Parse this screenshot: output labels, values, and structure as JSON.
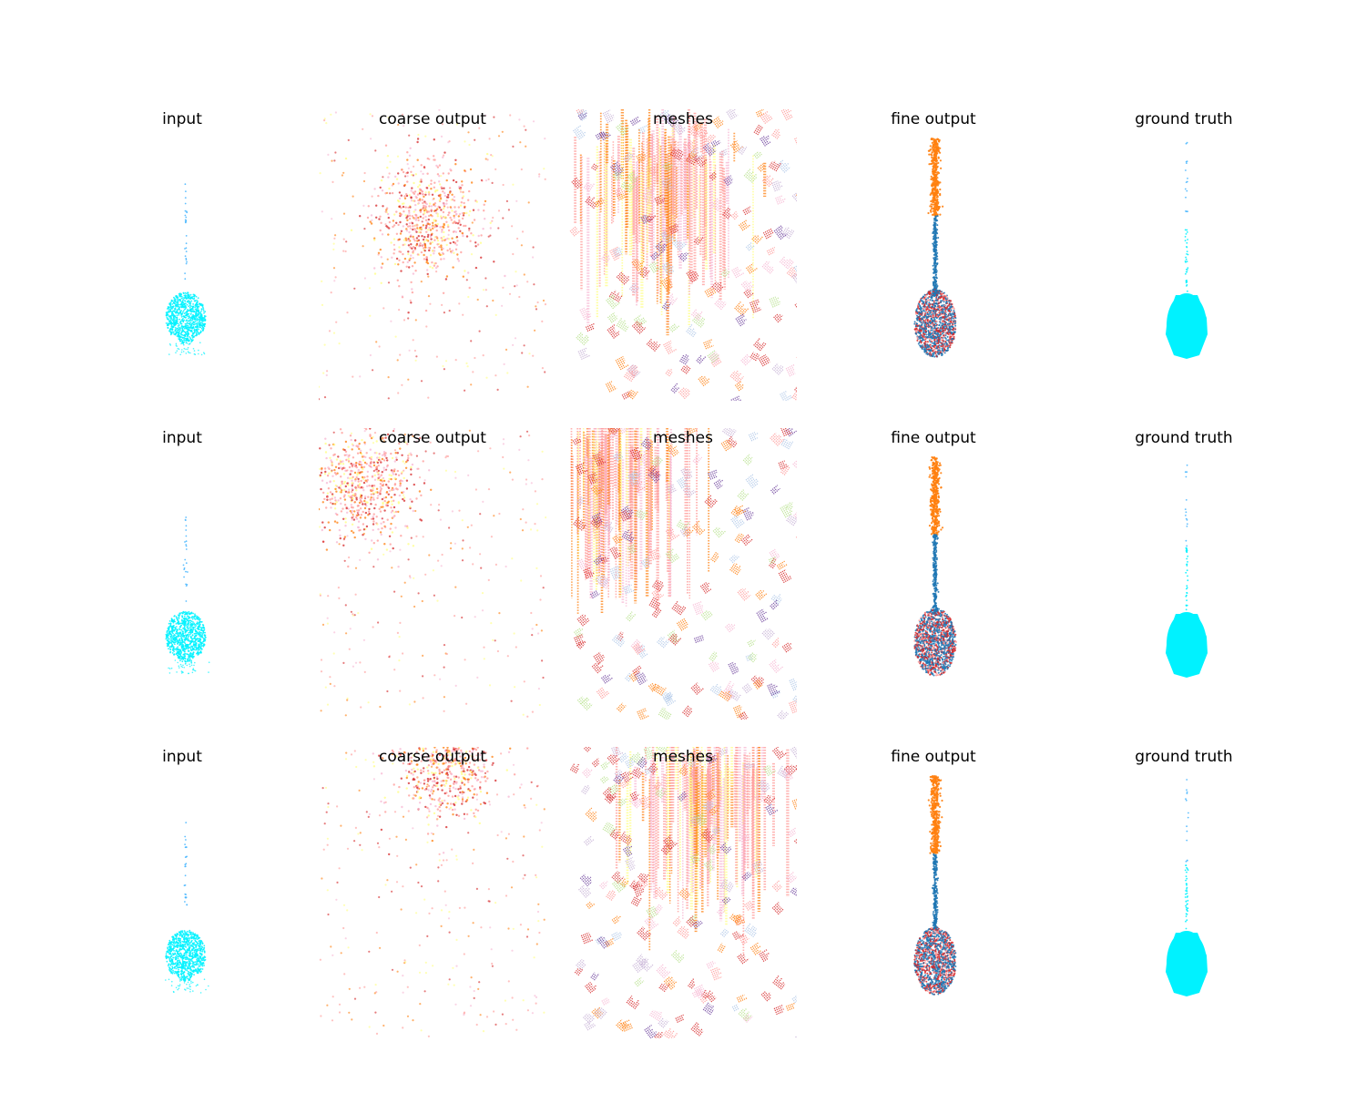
{
  "figure": {
    "columns": [
      {
        "key": "input",
        "title": "input"
      },
      {
        "key": "coarse",
        "title": "coarse output"
      },
      {
        "key": "meshes",
        "title": "meshes"
      },
      {
        "key": "fine",
        "title": "fine output"
      },
      {
        "key": "gt",
        "title": "ground truth"
      }
    ],
    "rows": [
      {
        "coarse_center": [
          0.48,
          0.38
        ],
        "mesh_center": [
          0.42,
          0.15
        ]
      },
      {
        "coarse_center": [
          0.2,
          0.2
        ],
        "mesh_center": [
          0.2,
          0.05
        ]
      },
      {
        "coarse_center": [
          0.55,
          0.05
        ],
        "mesh_center": [
          0.6,
          0.05
        ]
      }
    ],
    "palette": {
      "cyan": "#00f2ff",
      "light_blue": "#4db8ff",
      "orange": "#ff7f0e",
      "blue": "#1f77b4",
      "red": "#d62728",
      "salmon": "#ff9896",
      "pink": "#f7b6d2",
      "yellow": "#ffff80",
      "purple": "#6a3d9a",
      "lavender": "#c5b0d5",
      "pale_blue": "#aec7e8",
      "light_green": "#b5e08a"
    }
  }
}
